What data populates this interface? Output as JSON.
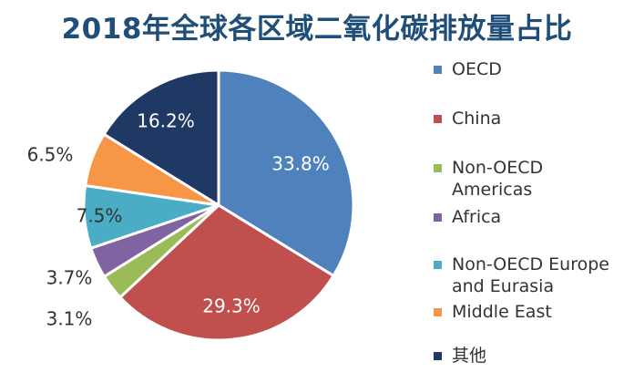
{
  "chart_data": {
    "type": "pie",
    "title": "2018年全球各区域二氧化碳排放量占比",
    "slices": [
      {
        "label": "OECD",
        "value": 33.8,
        "display": "33.8%",
        "color": "#4f81bd",
        "label_color": "#ffffff"
      },
      {
        "label": "China",
        "value": 29.3,
        "display": "29.3%",
        "color": "#c0504d",
        "label_color": "#ffffff"
      },
      {
        "label": "Non-OECD Americas",
        "value": 3.1,
        "display": "3.1%",
        "color": "#9bbb59",
        "label_color": "#333333"
      },
      {
        "label": "Africa",
        "value": 3.7,
        "display": "3.7%",
        "color": "#8064a2",
        "label_color": "#333333"
      },
      {
        "label": "Non-OECD Europe and Eurasia",
        "value": 7.5,
        "display": "7.5%",
        "color": "#4bacc6",
        "label_color": "#333333"
      },
      {
        "label": "Middle East",
        "value": 6.5,
        "display": "6.5%",
        "color": "#f79646",
        "label_color": "#333333"
      },
      {
        "label": "其他",
        "value": 16.2,
        "display": "16.2%",
        "color": "#1f3864",
        "label_color": "#ffffff"
      }
    ],
    "legend": {
      "position": "right",
      "items": [
        "OECD",
        "China",
        "Non-OECD\nAmericas",
        "Africa",
        "Non-OECD Europe\nand Eurasia",
        "Middle East",
        "其他"
      ]
    }
  }
}
